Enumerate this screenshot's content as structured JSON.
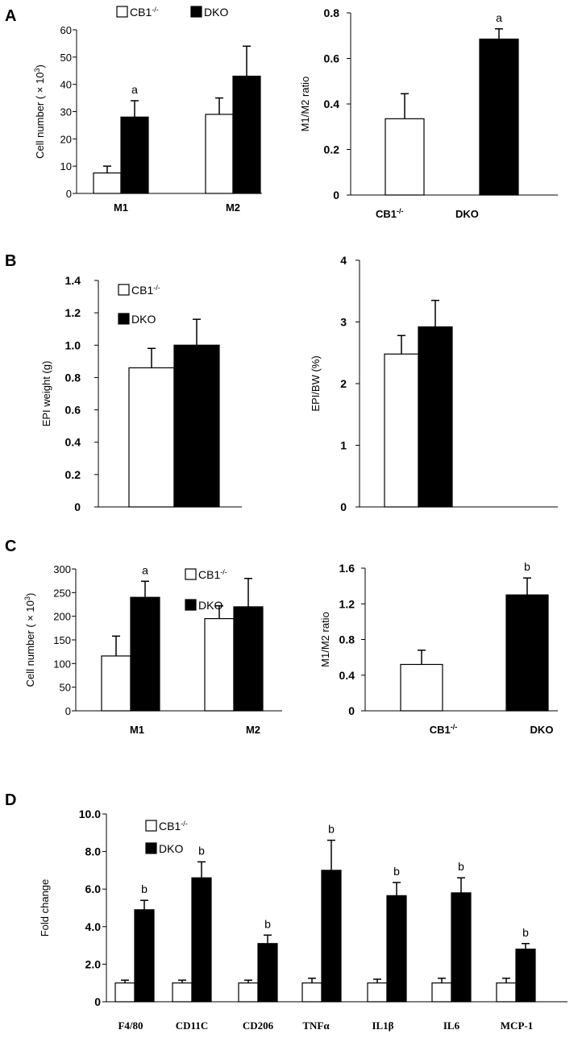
{
  "colors": {
    "cb1": "#ffffff",
    "dko": "#000000",
    "stroke": "#000000"
  },
  "legend_labels": {
    "cb1": "CB1",
    "cb1_sup": "-/-",
    "dko": "DKO"
  },
  "panels": [
    {
      "id": "A",
      "label": "A"
    },
    {
      "id": "B",
      "label": "B"
    },
    {
      "id": "C",
      "label": "C"
    },
    {
      "id": "D",
      "label": "D"
    }
  ],
  "chart_data": [
    {
      "panel": "A",
      "type": "bar",
      "ylabel": "Cell number ( × 10",
      "ylabel_sup": "3",
      "ylabel_end": ")",
      "ylim": [
        0,
        60
      ],
      "yticks": [
        "0",
        "10",
        "20",
        "30",
        "40",
        "50",
        "60"
      ],
      "categories": [
        "M1",
        "M2"
      ],
      "series": [
        {
          "name": "CB1-/-",
          "values": [
            7.5,
            29
          ],
          "errors": [
            2.5,
            6
          ]
        },
        {
          "name": "DKO",
          "values": [
            28,
            43
          ],
          "errors": [
            6,
            11
          ]
        }
      ],
      "annotations": [
        {
          "category": 0,
          "series": 1,
          "text": "a"
        }
      ],
      "legend": "top"
    },
    {
      "panel": "A",
      "type": "bar",
      "ylabel": "M1/M2 ratio",
      "ylim": [
        0,
        0.8
      ],
      "yticks": [
        "0",
        "0.2",
        "0.4",
        "0.6",
        "0.8"
      ],
      "categories": [
        "CB1-/-",
        "DKO"
      ],
      "values": [
        0.335,
        0.685
      ],
      "errors": [
        0.11,
        0.045
      ],
      "annotations": [
        {
          "category": 1,
          "text": "a"
        }
      ]
    },
    {
      "panel": "B",
      "type": "bar",
      "ylabel": "EPI  weight (g)",
      "ylim": [
        0,
        1.4
      ],
      "yticks": [
        "0",
        "0.2",
        "0.4",
        "0.6",
        "0.8",
        "1.0",
        "1.2",
        "1.4"
      ],
      "categories": [
        ""
      ],
      "series": [
        {
          "name": "CB1-/-",
          "values": [
            0.86
          ],
          "errors": [
            0.12
          ]
        },
        {
          "name": "DKO",
          "values": [
            1.0
          ],
          "errors": [
            0.16
          ]
        }
      ],
      "legend": "top-left"
    },
    {
      "panel": "B",
      "type": "bar",
      "ylabel": "EPI/BW (%)",
      "ylim": [
        0,
        4
      ],
      "yticks": [
        "0",
        "1",
        "2",
        "3",
        "4"
      ],
      "categories": [
        ""
      ],
      "series": [
        {
          "name": "CB1-/-",
          "values": [
            2.48
          ],
          "errors": [
            0.3
          ]
        },
        {
          "name": "DKO",
          "values": [
            2.92
          ],
          "errors": [
            0.43
          ]
        }
      ]
    },
    {
      "panel": "C",
      "type": "bar",
      "ylabel": "Cell number ( × 10",
      "ylabel_sup": "3",
      "ylabel_end": ")",
      "ylim": [
        0,
        300
      ],
      "yticks": [
        "0",
        "50",
        "100",
        "150",
        "200",
        "250",
        "300"
      ],
      "categories": [
        "M1",
        "M2"
      ],
      "series": [
        {
          "name": "CB1-/-",
          "values": [
            116,
            195
          ],
          "errors": [
            42,
            27
          ]
        },
        {
          "name": "DKO",
          "values": [
            240,
            220
          ],
          "errors": [
            34,
            60
          ]
        }
      ],
      "annotations": [
        {
          "category": 0,
          "series": 1,
          "text": "a"
        }
      ],
      "legend": "top-right"
    },
    {
      "panel": "C",
      "type": "bar",
      "ylabel": "M1/M2 ratio",
      "ylim": [
        0,
        1.6
      ],
      "yticks": [
        "0",
        "0.4",
        "0.8",
        "1.2",
        "1.6"
      ],
      "categories": [
        "CB1-/-",
        "DKO"
      ],
      "values": [
        0.52,
        1.3
      ],
      "errors": [
        0.16,
        0.19
      ],
      "annotations": [
        {
          "category": 1,
          "text": "b"
        }
      ]
    },
    {
      "panel": "D",
      "type": "bar",
      "ylabel": "Fold change",
      "ylim": [
        0,
        10
      ],
      "yticks": [
        "0",
        "2.0",
        "4.0",
        "6.0",
        "8.0",
        "10.0"
      ],
      "categories": [
        "F4/80",
        "CD11C",
        "CD206",
        "TNFα",
        "IL1β",
        "IL6",
        "MCP-1"
      ],
      "series": [
        {
          "name": "CB1-/-",
          "values": [
            1.0,
            1.0,
            1.0,
            1.0,
            1.0,
            1.0,
            1.0
          ],
          "errors": [
            0.15,
            0.15,
            0.15,
            0.25,
            0.2,
            0.25,
            0.25
          ]
        },
        {
          "name": "DKO",
          "values": [
            4.9,
            6.6,
            3.1,
            7.0,
            5.65,
            5.8,
            2.8
          ],
          "errors": [
            0.5,
            0.85,
            0.45,
            1.6,
            0.7,
            0.8,
            0.3
          ]
        }
      ],
      "annotations": [
        {
          "category": 0,
          "series": 1,
          "text": "b"
        },
        {
          "category": 1,
          "series": 1,
          "text": "b"
        },
        {
          "category": 2,
          "series": 1,
          "text": "b"
        },
        {
          "category": 3,
          "series": 1,
          "text": "b"
        },
        {
          "category": 4,
          "series": 1,
          "text": "b"
        },
        {
          "category": 5,
          "series": 1,
          "text": "b"
        },
        {
          "category": 6,
          "series": 1,
          "text": "b"
        }
      ],
      "legend": "top-left"
    }
  ]
}
